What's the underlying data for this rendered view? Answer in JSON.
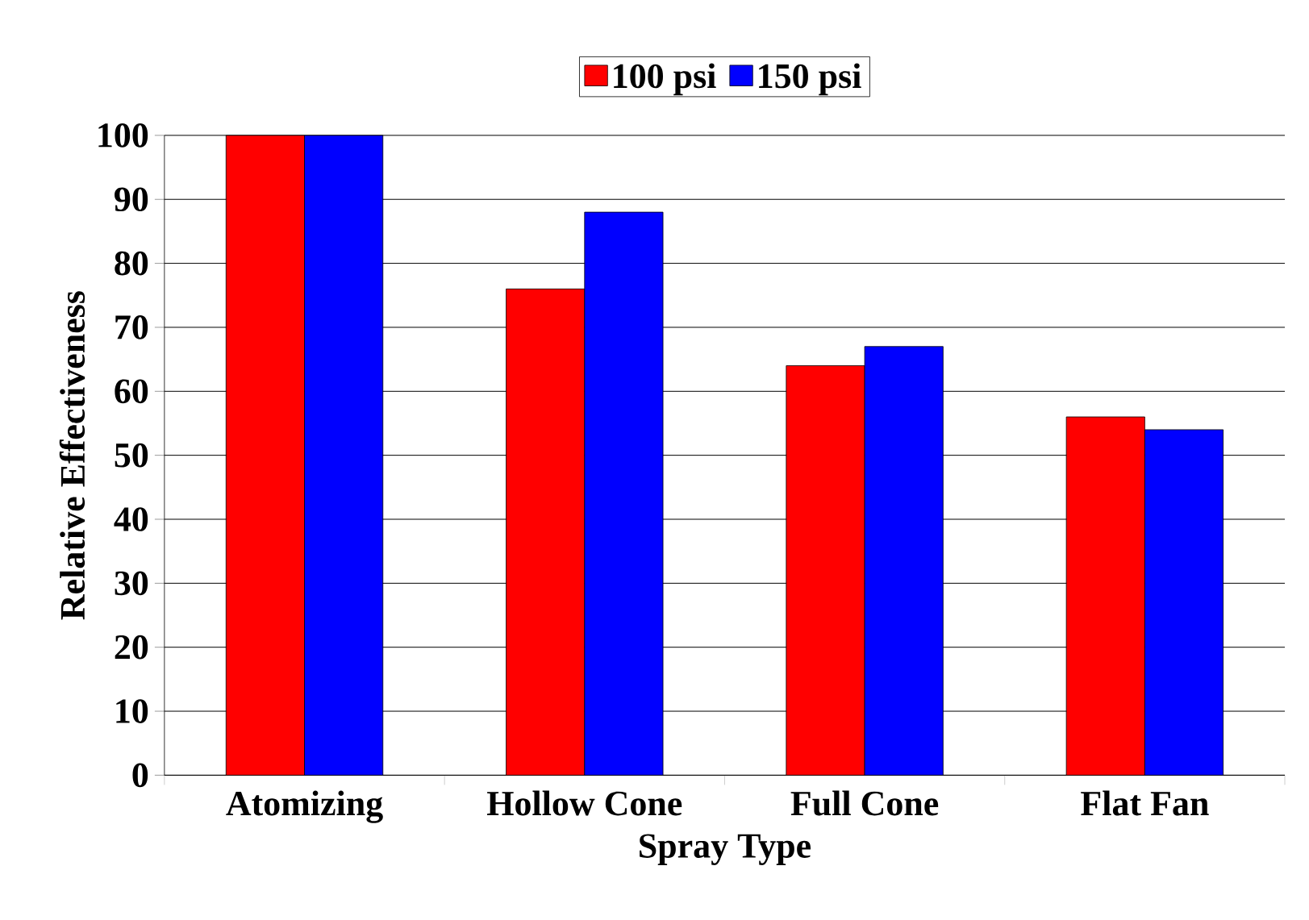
{
  "chart_data": {
    "type": "bar",
    "xlabel": "Spray Type",
    "ylabel": "Relative Effectiveness",
    "categories": [
      "Atomizing",
      "Hollow Cone",
      "Full Cone",
      "Flat Fan"
    ],
    "series": [
      {
        "name": "100 psi",
        "color": "#ff0000",
        "values": [
          100,
          76,
          64,
          56
        ]
      },
      {
        "name": "150 psi",
        "color": "#0000ff",
        "values": [
          100,
          88,
          67,
          54
        ]
      }
    ],
    "ylim": [
      0,
      100
    ],
    "yticks": [
      0,
      10,
      20,
      30,
      40,
      50,
      60,
      70,
      80,
      90,
      100
    ],
    "grid": "y",
    "legend": "top"
  }
}
